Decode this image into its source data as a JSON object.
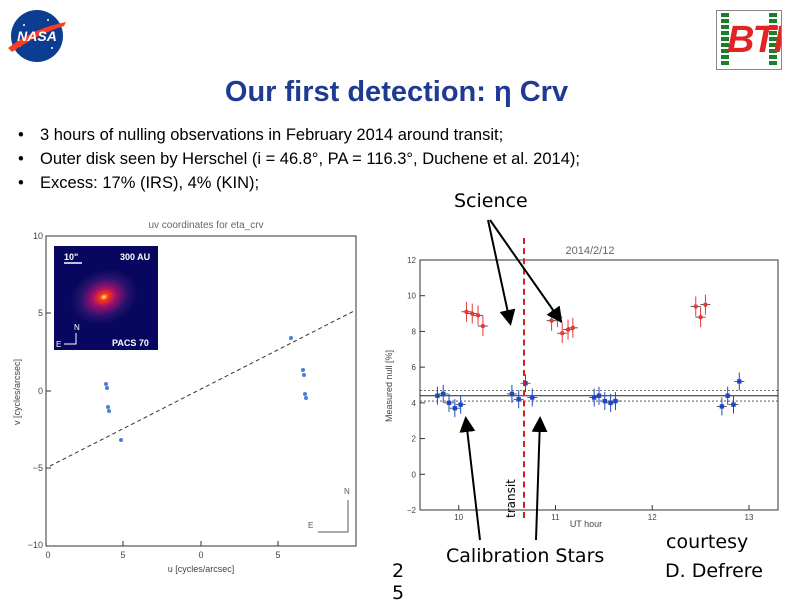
{
  "slide": {
    "title": "Our first detection: η Crv",
    "bullets": [
      "3 hours of nulling observations in February 2014 around transit;",
      "Outer disk seen by Herschel (i = 46.8°, PA = 116.3°, Duchene et al. 2014);",
      "Excess: 17% (IRS), 4% (KIN);"
    ],
    "annotations": {
      "science": "Science",
      "calibration": "Calibration Stars",
      "transit": "transit",
      "courtesy_line1": "courtesy",
      "courtesy_line2": "D. Defrere",
      "page_number_line1": "2",
      "page_number_line2": "5"
    },
    "logos": {
      "nasa": "NASA",
      "bti": "BTI"
    }
  },
  "uv_plot": {
    "title": "uv coordinates for eta_crv",
    "xlabel": "u [cycles/arcsec]",
    "ylabel": "v [cycles/arcsec]",
    "xticks": [
      "0",
      "5",
      "0",
      "5"
    ],
    "yticks": [
      "10",
      "5",
      "0",
      "−5",
      "−10"
    ],
    "compass_n": "N",
    "compass_e": "E",
    "inset": {
      "scale_left": "10\"",
      "scale_right": "300 AU",
      "compass_n": "N",
      "compass_e": "E",
      "label": "PACS 70"
    }
  },
  "chart_data": {
    "type": "scatter",
    "title": "2014/2/12",
    "xlabel": "UT hour",
    "ylabel": "Measured null [%]",
    "xlim": [
      9.6,
      13.3
    ],
    "ylim": [
      -2,
      12
    ],
    "xticks": [
      "10",
      "11",
      "12",
      "13"
    ],
    "yticks": [
      "−2",
      "0",
      "2",
      "4",
      "6",
      "8",
      "10",
      "12"
    ],
    "transit_x": 10.42,
    "series": [
      {
        "color": "#e53935",
        "points": [
          {
            "x": 10.08,
            "y": 9.1
          },
          {
            "x": 10.14,
            "y": 9.0
          },
          {
            "x": 10.2,
            "y": 8.9
          },
          {
            "x": 10.25,
            "y": 8.3
          },
          {
            "x": 10.96,
            "y": 8.6
          },
          {
            "x": 11.02,
            "y": 8.8
          },
          {
            "x": 11.07,
            "y": 7.9
          },
          {
            "x": 11.13,
            "y": 8.1
          },
          {
            "x": 11.18,
            "y": 8.2
          },
          {
            "x": 12.45,
            "y": 9.4
          },
          {
            "x": 12.5,
            "y": 8.8
          },
          {
            "x": 12.55,
            "y": 9.5
          }
        ]
      },
      {
        "color": "#1e47c8",
        "points": [
          {
            "x": 9.78,
            "y": 4.4
          },
          {
            "x": 9.84,
            "y": 4.5
          },
          {
            "x": 9.9,
            "y": 4.0
          },
          {
            "x": 9.96,
            "y": 3.7
          },
          {
            "x": 10.02,
            "y": 3.9
          },
          {
            "x": 10.55,
            "y": 4.5
          },
          {
            "x": 10.62,
            "y": 4.2
          },
          {
            "x": 10.69,
            "y": 5.1
          },
          {
            "x": 10.76,
            "y": 4.3
          },
          {
            "x": 11.4,
            "y": 4.3
          },
          {
            "x": 11.45,
            "y": 4.4
          },
          {
            "x": 11.51,
            "y": 4.1
          },
          {
            "x": 11.57,
            "y": 4.0
          },
          {
            "x": 11.62,
            "y": 4.1
          },
          {
            "x": 12.72,
            "y": 3.8
          },
          {
            "x": 12.78,
            "y": 4.4
          },
          {
            "x": 12.84,
            "y": 3.9
          },
          {
            "x": 12.9,
            "y": 5.2
          }
        ]
      }
    ],
    "mean_band": [
      4.1,
      4.4,
      4.7
    ]
  }
}
